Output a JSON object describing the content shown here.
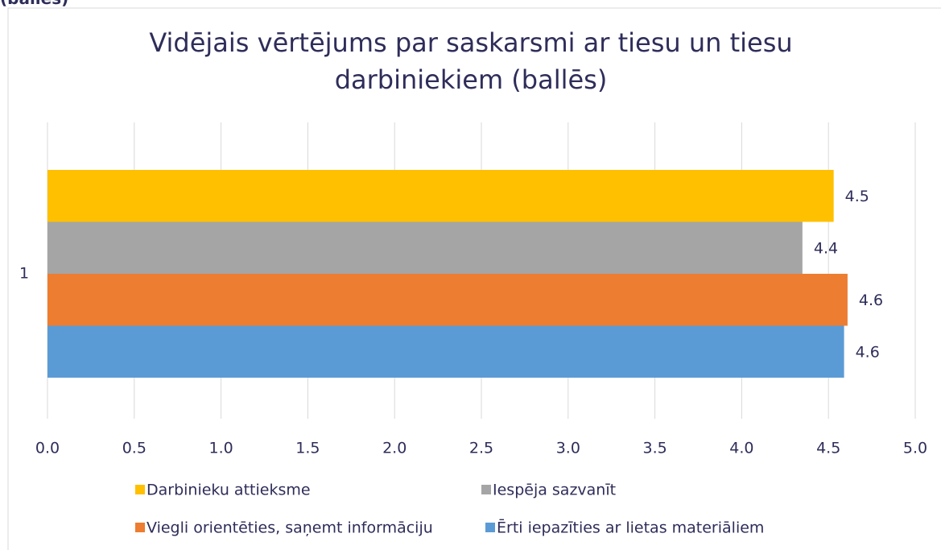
{
  "header_fragment": "(ballēs)",
  "chart_data": {
    "type": "hbar",
    "title": "Vidējais vērtējums par saskarsmi ar tiesu un tiesu darbiniekiem (ballēs)",
    "categories": [
      "1"
    ],
    "series": [
      {
        "name": "Darbinieku attieksme",
        "color": "#ffc000",
        "values": [
          4.53
        ],
        "value_labels": [
          "4.5"
        ]
      },
      {
        "name": "Iespēja sazvanīt",
        "color": "#a5a5a5",
        "values": [
          4.35
        ],
        "value_labels": [
          "4.4"
        ]
      },
      {
        "name": "Viegli orientēties, saņemt informāciju",
        "color": "#ed7d31",
        "values": [
          4.61
        ],
        "value_labels": [
          "4.6"
        ]
      },
      {
        "name": "Ērti iepazīties ar lietas materiāliem",
        "color": "#5b9bd5",
        "values": [
          4.59
        ],
        "value_labels": [
          "4.6"
        ]
      }
    ],
    "xlim": [
      0,
      5
    ],
    "xticks": [
      {
        "value": 0,
        "label": "0.0"
      },
      0.5,
      {
        "value": 1,
        "label": "1.0"
      },
      1.5,
      {
        "value": 2,
        "label": "2.0"
      },
      2.5,
      {
        "value": 3,
        "label": "3.0"
      },
      3.5,
      {
        "value": 4,
        "label": "4.0"
      },
      4.5,
      {
        "value": 5,
        "label": "5.0"
      }
    ],
    "grid": true,
    "legend": "bottom"
  }
}
